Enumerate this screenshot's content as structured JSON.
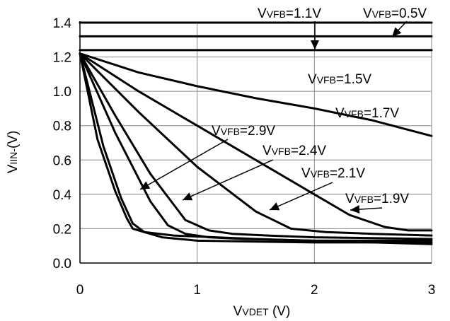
{
  "chart_data": {
    "type": "line",
    "xlabel": {
      "main": "V",
      "sub": "VDET",
      "unit": " (V)"
    },
    "ylabel": {
      "main": "V",
      "sub": "IIN-",
      "unit": "(V)"
    },
    "xlim": [
      0,
      3
    ],
    "ylim": [
      0,
      1.4
    ],
    "xticks": [
      "0",
      "1",
      "2",
      "3"
    ],
    "yticks": [
      "0.0",
      "0.2",
      "0.4",
      "0.6",
      "0.8",
      "1.0",
      "1.2",
      "1.4"
    ],
    "grid": true,
    "series": [
      {
        "name": "VFB=0.5V",
        "x": [
          0,
          3
        ],
        "y": [
          1.4,
          1.4
        ]
      },
      {
        "name": "VFB=1.1V",
        "x": [
          0,
          3
        ],
        "y": [
          1.32,
          1.32
        ]
      },
      {
        "name": "VFB=1.5V",
        "x": [
          0,
          3
        ],
        "y": [
          1.24,
          1.24
        ]
      },
      {
        "name": "VFB=1.7V",
        "x": [
          0,
          0.5,
          1.0,
          1.5,
          2.0,
          2.5,
          3.0
        ],
        "y": [
          1.22,
          1.11,
          1.03,
          0.96,
          0.9,
          0.83,
          0.74
        ]
      },
      {
        "name": "VFB=1.9V",
        "x": [
          0,
          0.5,
          1.0,
          1.5,
          2.0,
          2.3,
          2.6,
          2.8,
          3.0
        ],
        "y": [
          1.22,
          1.0,
          0.8,
          0.6,
          0.4,
          0.28,
          0.21,
          0.19,
          0.19
        ]
      },
      {
        "name": "VFB=2.1V",
        "x": [
          0,
          0.5,
          1.0,
          1.5,
          1.8,
          2.1,
          2.5,
          3.0
        ],
        "y": [
          1.22,
          0.88,
          0.56,
          0.3,
          0.2,
          0.18,
          0.17,
          0.16
        ]
      },
      {
        "name": "VFB=2.4V",
        "x": [
          0,
          0.3,
          0.6,
          0.9,
          1.1,
          1.3,
          1.6,
          2.0,
          3.0
        ],
        "y": [
          1.22,
          0.86,
          0.52,
          0.25,
          0.19,
          0.17,
          0.16,
          0.15,
          0.14
        ]
      },
      {
        "name": "VFB=2.9V",
        "x": [
          0,
          0.3,
          0.6,
          0.75,
          0.9,
          1.1,
          1.4,
          2.0,
          3.0
        ],
        "y": [
          1.22,
          0.76,
          0.36,
          0.22,
          0.17,
          0.15,
          0.14,
          0.13,
          0.13
        ]
      },
      {
        "name": "",
        "x": [
          0,
          0.2,
          0.35,
          0.45,
          0.55,
          0.7,
          1.0,
          2.0,
          3.0
        ],
        "y": [
          1.22,
          0.68,
          0.38,
          0.23,
          0.18,
          0.15,
          0.13,
          0.12,
          0.12
        ]
      },
      {
        "name": "",
        "x": [
          0,
          0.15,
          0.3,
          0.4,
          0.45,
          0.55,
          0.8,
          1.5,
          3.0
        ],
        "y": [
          1.22,
          0.72,
          0.42,
          0.26,
          0.2,
          0.18,
          0.16,
          0.14,
          0.11
        ]
      }
    ],
    "annotations": [
      {
        "main": "V",
        "sub": "VFB",
        "rest": "=1.1V"
      },
      {
        "main": "V",
        "sub": "VFB",
        "rest": "=0.5V"
      },
      {
        "main": "V",
        "sub": "VFB",
        "rest": "=1.5V"
      },
      {
        "main": "V",
        "sub": "VFB",
        "rest": "=1.7V"
      },
      {
        "main": "V",
        "sub": "VFB",
        "rest": "=2.9V"
      },
      {
        "main": "V",
        "sub": "VFB",
        "rest": "=2.4V"
      },
      {
        "main": "V",
        "sub": "VFB",
        "rest": "=2.1V"
      },
      {
        "main": "V",
        "sub": "VFB",
        "rest": "=1.9V"
      }
    ]
  }
}
